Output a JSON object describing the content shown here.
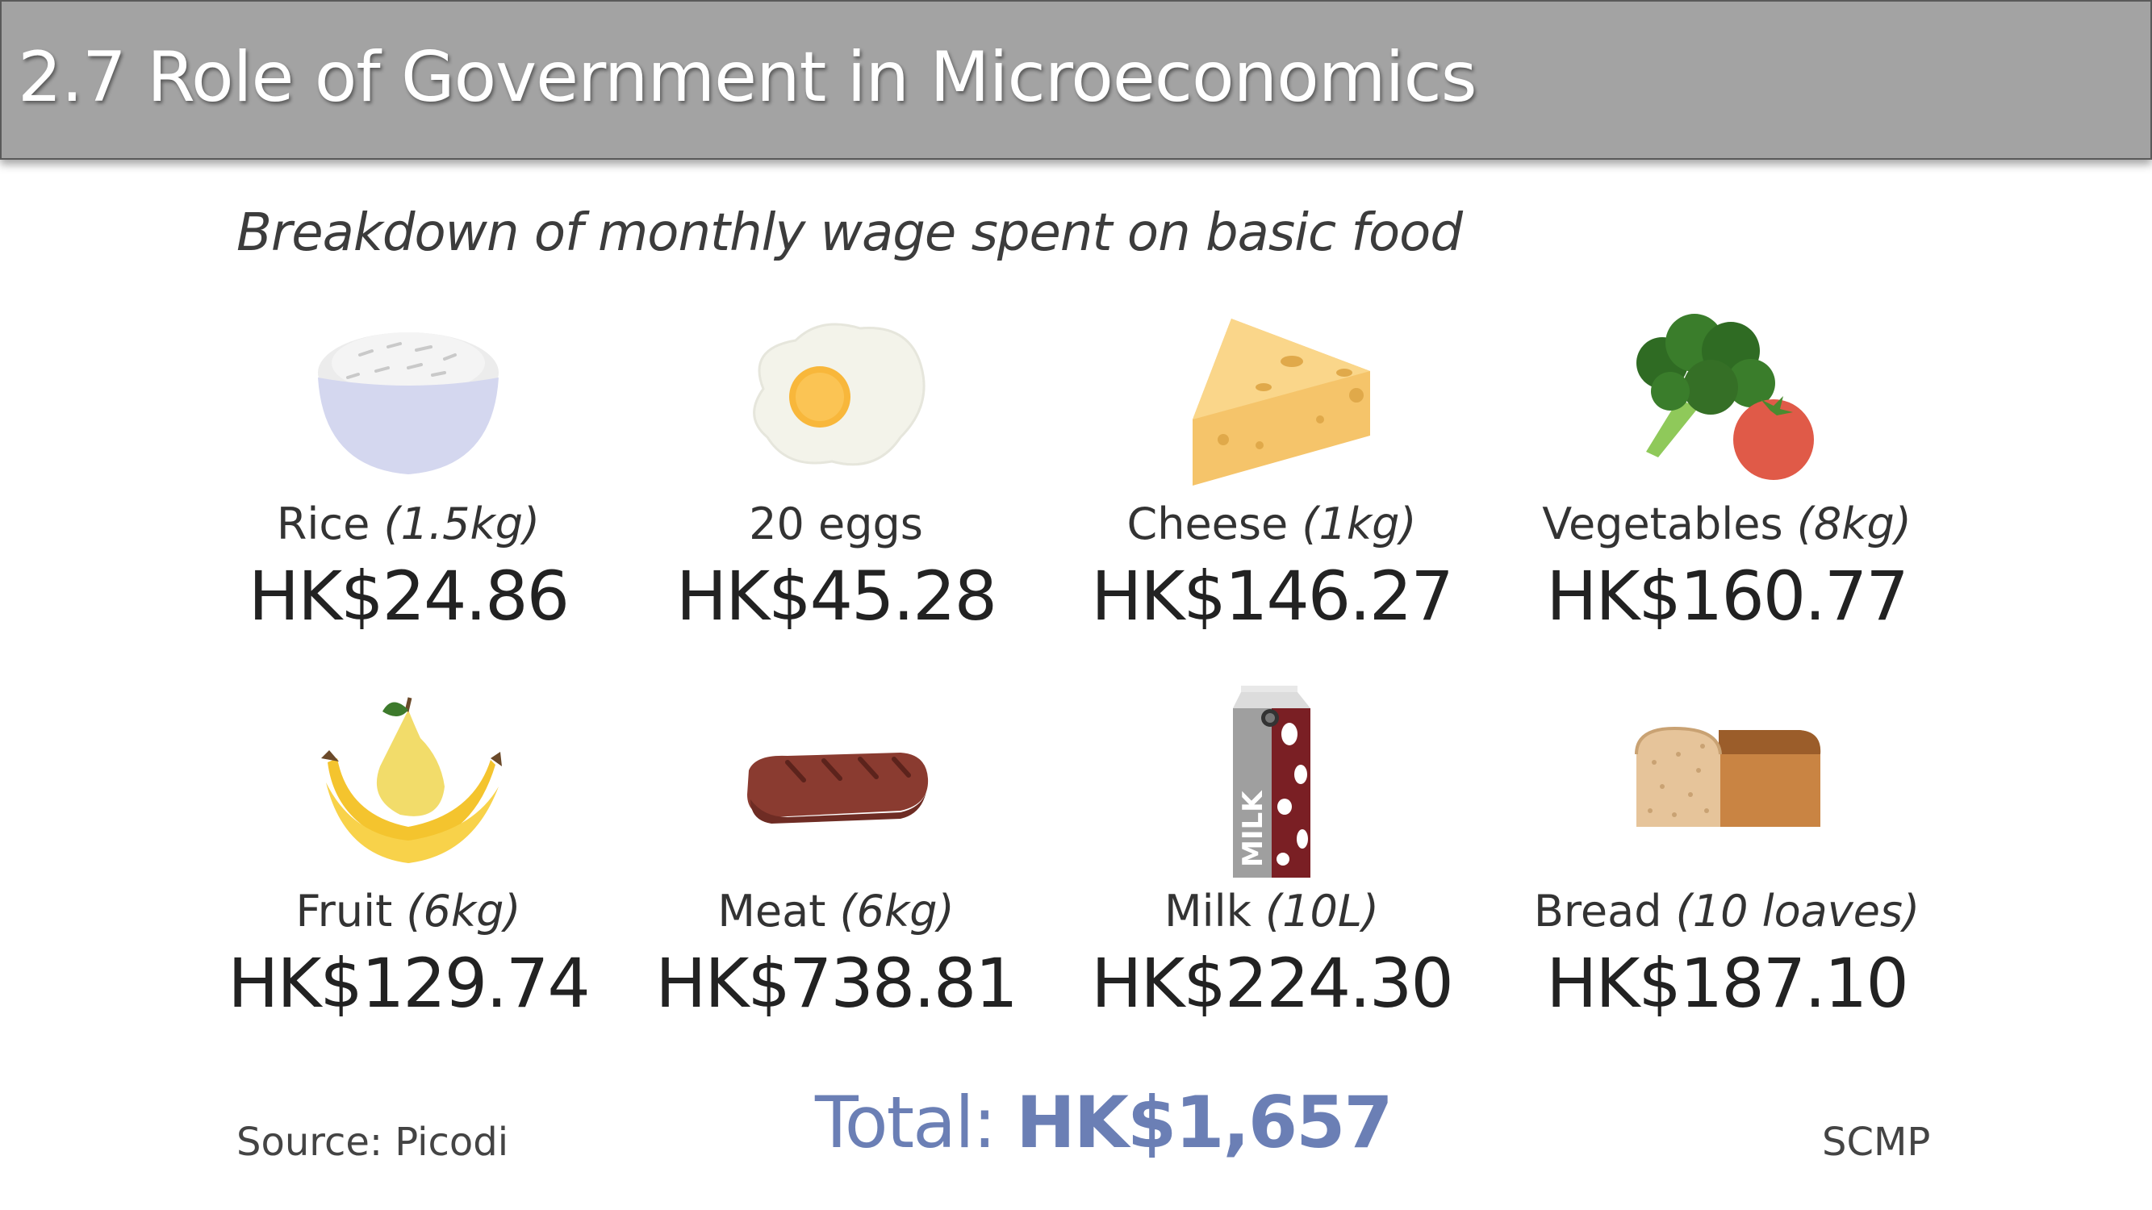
{
  "slide": {
    "title": "2.7 Role of Government in Microeconomics"
  },
  "infographic": {
    "subtitle": "Breakdown of monthly wage spent on basic food",
    "items": [
      {
        "name": "Rice",
        "qty": "(1.5kg)",
        "price": "HK$24.86",
        "icon": "rice-bowl-icon"
      },
      {
        "name": "20 eggs",
        "qty": "",
        "price": "HK$45.28",
        "icon": "fried-egg-icon"
      },
      {
        "name": "Cheese",
        "qty": "(1kg)",
        "price": "HK$146.27",
        "icon": "cheese-icon"
      },
      {
        "name": "Vegetables",
        "qty": "(8kg)",
        "price": "HK$160.77",
        "icon": "broccoli-tomato-icon"
      },
      {
        "name": "Fruit",
        "qty": "(6kg)",
        "price": "HK$129.74",
        "icon": "banana-pear-icon"
      },
      {
        "name": "Meat",
        "qty": "(6kg)",
        "price": "HK$738.81",
        "icon": "steak-icon"
      },
      {
        "name": "Milk",
        "qty": "(10L)",
        "price": "HK$224.30",
        "icon": "milk-carton-icon",
        "carton_text": "MILK"
      },
      {
        "name": "Bread",
        "qty": "(10 loaves)",
        "price": "HK$187.10",
        "icon": "bread-loaf-icon"
      }
    ],
    "total_label": "Total:",
    "total_value": "HK$1,657",
    "source": "Source: Picodi",
    "brand": "SCMP"
  },
  "colors": {
    "title_bar": "#a3a3a3",
    "total_text": "#6b7fb5",
    "rice_bowl": "#d4d7ef",
    "cheese": "#f5c46a",
    "egg_yolk": "#f8b73b",
    "meat": "#8a3b30",
    "bread_crust": "#b5743a"
  }
}
